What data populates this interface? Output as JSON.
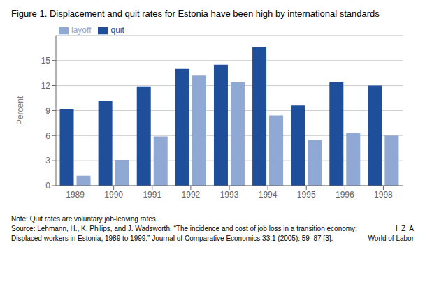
{
  "chart_data": {
    "type": "bar",
    "title": "Figure 1. Displacement and quit rates for Estonia have been high by international standards",
    "categories": [
      "1989",
      "1990",
      "1991",
      "1992",
      "1993",
      "1994",
      "1995",
      "1996",
      "1998"
    ],
    "series": [
      {
        "name": "quit",
        "color": "#1F4E9B",
        "values": [
          9.2,
          10.2,
          11.9,
          14.0,
          14.5,
          16.6,
          9.6,
          12.4,
          12.0
        ]
      },
      {
        "name": "layoff",
        "color": "#8FA8D4",
        "values": [
          1.2,
          3.1,
          5.9,
          13.2,
          12.4,
          8.4,
          5.5,
          6.3,
          6.0
        ]
      }
    ],
    "ylabel": "Percent",
    "ylim": [
      0,
      18
    ],
    "yticks": [
      0,
      3,
      6,
      9,
      12,
      15
    ],
    "grid": true,
    "legend": "upper left",
    "annotations": [
      "Note: Quit rates are voluntary job-leaving rates.",
      "Source: Lehmann, H., K. Philips, and J. Wadsworth. “The incidence and cost of job loss in a transition economy:",
      "Displaced workers in Estonia, 1989 to 1999.” Journal of Comparative Economics 33:1 (2005): 59–87 [3].",
      "I  Z  A",
      "World of Labor"
    ]
  }
}
